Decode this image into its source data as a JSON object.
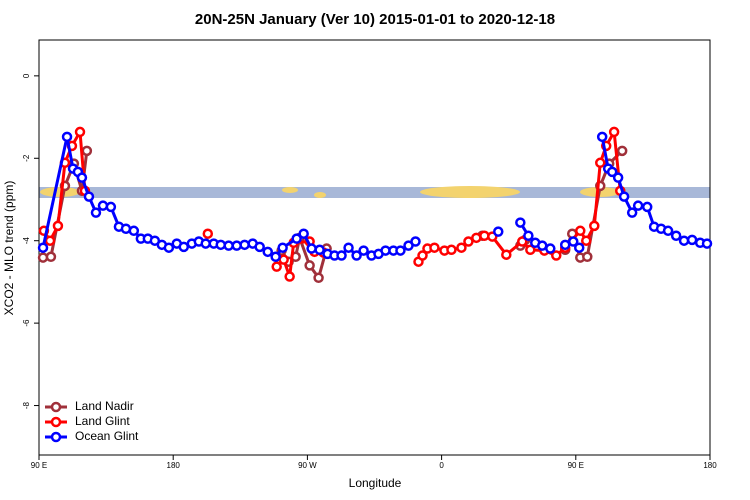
{
  "chart_data": {
    "type": "line",
    "title": "20N-25N January (Ver 10)   2015-01-01 to 2020-12-18",
    "xlabel": "Longitude",
    "ylabel": "XCO2 - MLO trend (ppm)",
    "xlim": [
      90,
      540
    ],
    "xticks": [
      {
        "value": 90,
        "label": "90 E"
      },
      {
        "value": 180,
        "label": "180"
      },
      {
        "value": 270,
        "label": "90 W"
      },
      {
        "value": 360,
        "label": "0"
      },
      {
        "value": 450,
        "label": "90 E"
      },
      {
        "value": 540,
        "label": "180"
      }
    ],
    "ylim": [
      -9.2,
      0.87
    ],
    "yticks": [
      0,
      -2,
      -4,
      -6,
      -8
    ],
    "legend": "bottom-left",
    "series": [
      {
        "name": "Land Nadir",
        "color": "#a0303a",
        "x": [
          92.7,
          98,
          107.4,
          113.4,
          118.8,
          122.1,
          null,
          252.7,
          257.4,
          262.1,
          264.8,
          271.5,
          277.5,
          282.9,
          null,
          387.3,
          null,
          412.8,
          416.1,
          null,
          442.9,
          447.6,
          453,
          457.7,
          466.4,
          472.4,
          481.1
        ],
        "values": [
          -4.41,
          -4.39,
          -2.67,
          -2.13,
          -2.79,
          -1.82,
          null,
          -4.24,
          -4.51,
          -4.39,
          -3.93,
          -4.6,
          -4.9,
          -4.19,
          null,
          -3.88,
          null,
          -4.12,
          -3.98,
          null,
          -4.22,
          -3.83,
          -4.41,
          -4.39,
          -2.67,
          -2.13,
          -1.82
        ]
      },
      {
        "name": "Land Glint",
        "color": "#ff0000",
        "x": [
          93.3,
          97.4,
          102.7,
          107.4,
          112.1,
          117.5,
          120.8,
          null,
          203.2,
          null,
          249.4,
          254.1,
          258.1,
          260.8,
          271.5,
          274.8,
          280.9,
          null,
          344.5,
          347.2,
          350.5,
          355.2,
          361.9,
          366.6,
          373.3,
          378,
          383.3,
          388.7,
          394,
          403.4,
          414.1,
          419.5,
          428.9,
          436.9,
          442.9,
          453,
          457,
          462.4,
          466.4,
          470.4,
          475.7,
          479.8
        ],
        "values": [
          -3.76,
          -4.0,
          -3.64,
          -2.11,
          -1.7,
          -1.36,
          -2.79,
          null,
          -3.83,
          null,
          -4.63,
          -4.46,
          -4.87,
          -4.05,
          -4.02,
          -4.27,
          -4.29,
          null,
          -4.51,
          -4.36,
          -4.19,
          -4.17,
          -4.24,
          -4.22,
          -4.17,
          -4.02,
          -3.93,
          -3.88,
          -3.9,
          -4.34,
          -4.02,
          -4.22,
          -4.24,
          -4.36,
          -4.17,
          -3.76,
          -4.0,
          -3.64,
          -2.11,
          -1.7,
          -1.36,
          -2.79
        ]
      },
      {
        "name": "Ocean Glint",
        "color": "#0000ff",
        "x": [
          92.7,
          108.8,
          112.8,
          116.1,
          118.8,
          123.5,
          128.2,
          132.9,
          138.2,
          143.6,
          148.3,
          153.6,
          158.3,
          163,
          167.7,
          172.4,
          177.1,
          182.4,
          187.1,
          192.5,
          197.2,
          201.8,
          207.2,
          211.9,
          217.2,
          222.6,
          227.9,
          233.3,
          238,
          243.4,
          248.7,
          253.4,
          262.8,
          267.5,
          272.8,
          278.2,
          283.5,
          288.2,
          292.9,
          297.6,
          303,
          307.7,
          313,
          317.7,
          322.4,
          327.7,
          332.4,
          337.8,
          342.5,
          null,
          398,
          null,
          412.8,
          418.2,
          422.8,
          427.5,
          432.9,
          null,
          442.9,
          448.3,
          452.3,
          null,
          467.7,
          471.7,
          474.4,
          478.4,
          482.4,
          487.8,
          491.8,
          497.9,
          502.5,
          507.2,
          511.9,
          517.3,
          522.6,
          528,
          533.4,
          538
        ],
        "values": [
          -4.17,
          -1.48,
          -2.25,
          -2.33,
          -2.47,
          -2.93,
          -3.32,
          -3.15,
          -3.18,
          -3.66,
          -3.71,
          -3.76,
          -3.95,
          -3.95,
          -4.0,
          -4.1,
          -4.17,
          -4.07,
          -4.15,
          -4.07,
          -4.02,
          -4.07,
          -4.07,
          -4.1,
          -4.12,
          -4.12,
          -4.1,
          -4.07,
          -4.15,
          -4.27,
          -4.39,
          -4.17,
          -3.95,
          -3.83,
          -4.19,
          -4.22,
          -4.32,
          -4.36,
          -4.36,
          -4.17,
          -4.36,
          -4.24,
          -4.36,
          -4.32,
          -4.24,
          -4.24,
          -4.24,
          -4.12,
          -4.02,
          null,
          -3.78,
          null,
          -3.56,
          -3.88,
          -4.05,
          -4.12,
          -4.19,
          null,
          -4.1,
          -4.02,
          -4.17,
          null,
          -1.48,
          -2.25,
          -2.33,
          -2.47,
          -2.93,
          -3.32,
          -3.15,
          -3.18,
          -3.66,
          -3.71,
          -3.76,
          -3.88,
          -4.0,
          -3.98,
          -4.05,
          -4.07
        ]
      }
    ]
  }
}
